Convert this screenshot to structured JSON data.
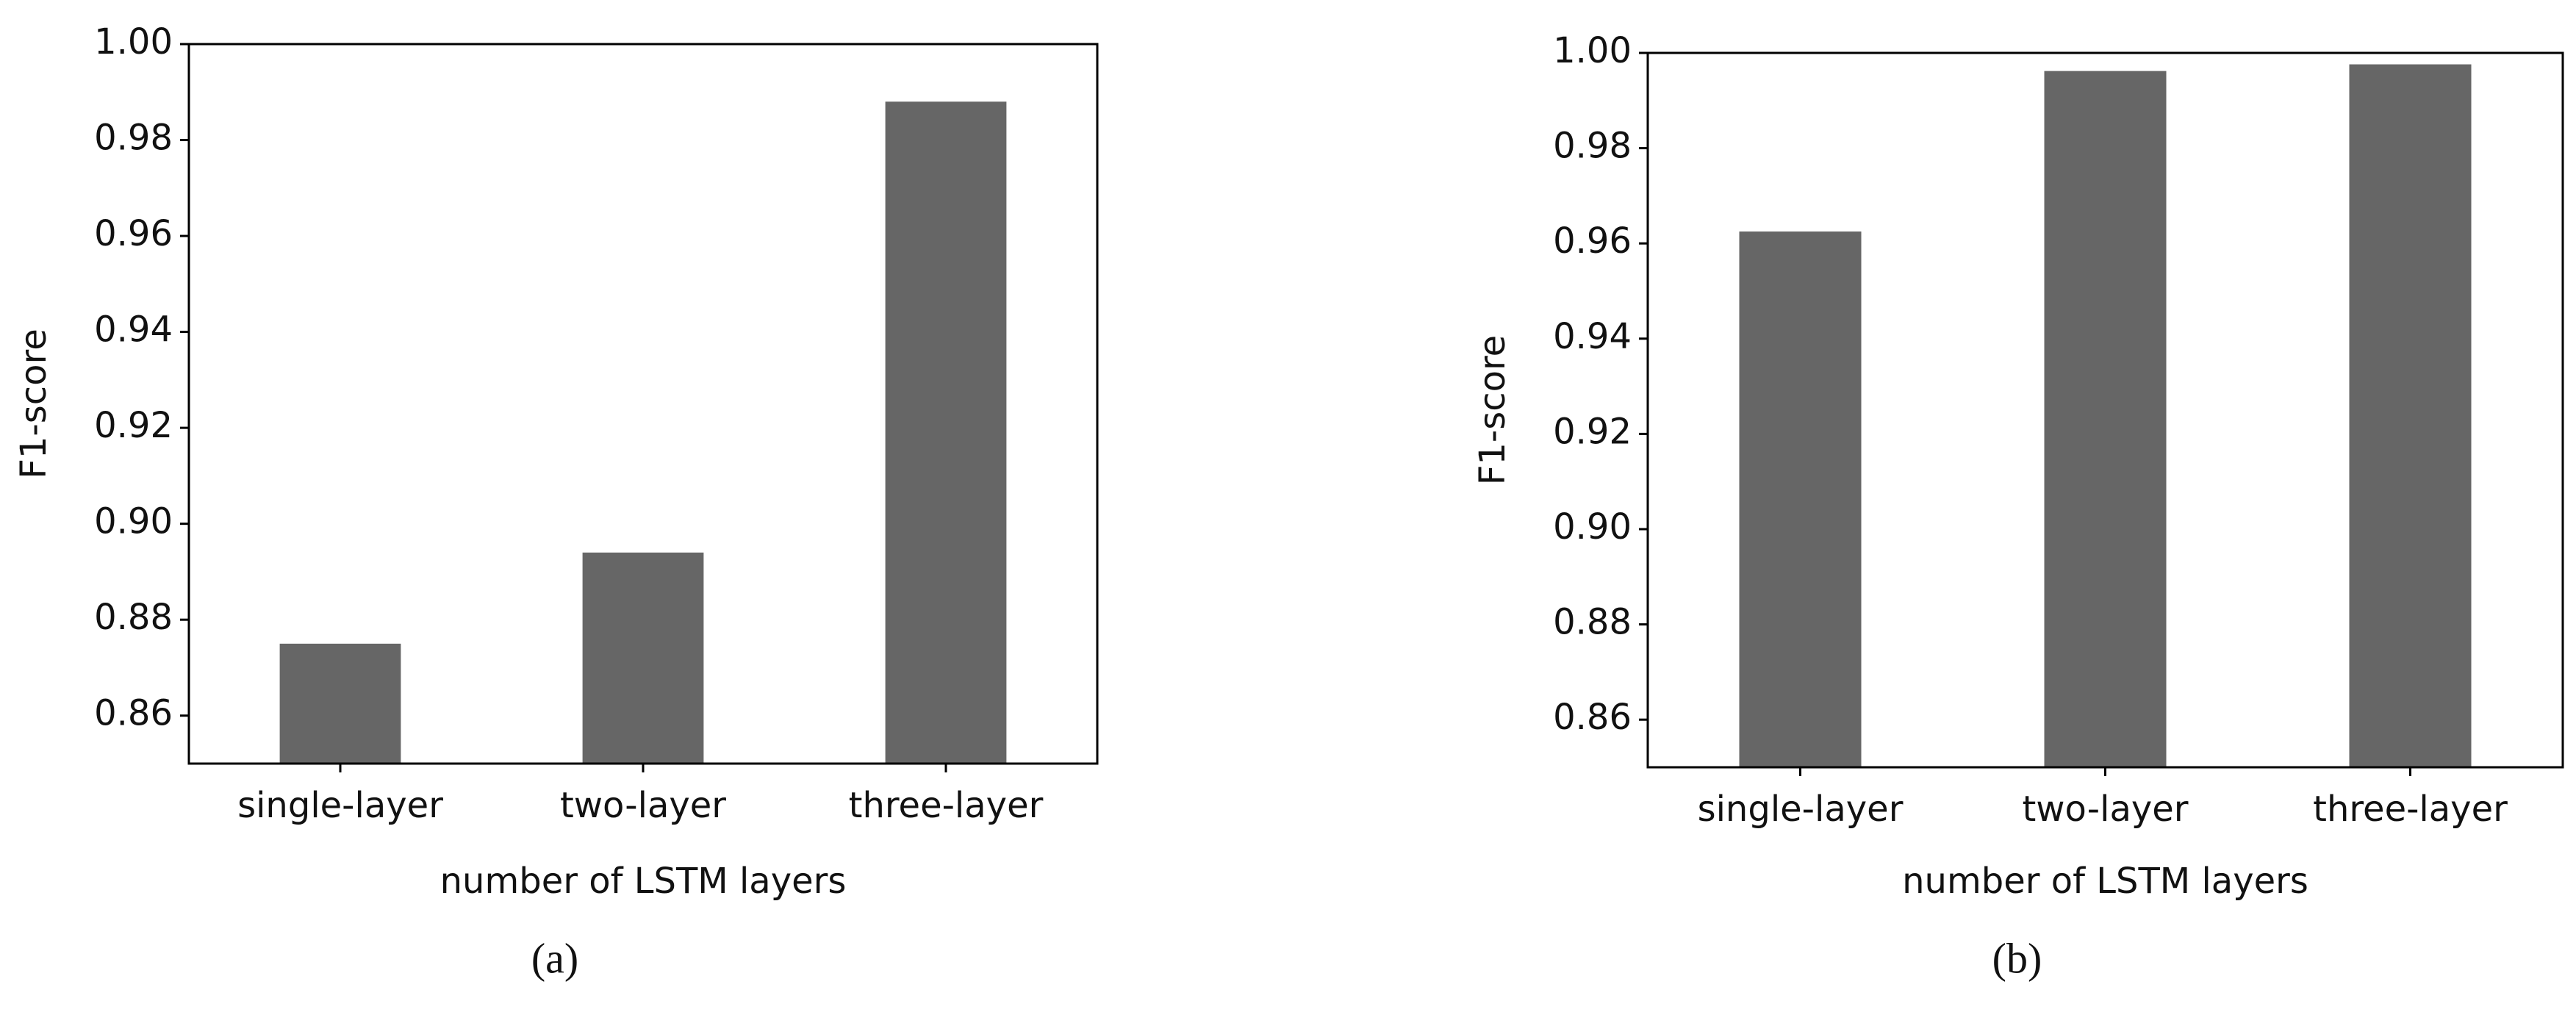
{
  "chart_data": [
    {
      "type": "bar",
      "caption": "(a)",
      "xlabel": "number of LSTM layers",
      "ylabel": "F1-score",
      "categories": [
        "single-layer",
        "two-layer",
        "three-layer"
      ],
      "values": [
        0.875,
        0.894,
        0.988
      ],
      "color": "#666666",
      "ylim": [
        0.85,
        1
      ],
      "yticks": [
        0.86,
        0.88,
        {
          "value": 0.9,
          "label": "0.90"
        },
        0.92,
        0.94,
        0.96,
        0.98,
        {
          "value": 1,
          "label": "1.00"
        }
      ],
      "grid": false
    },
    {
      "type": "bar",
      "caption": "(b)",
      "xlabel": "number of LSTM layers",
      "ylabel": "F1-score",
      "categories": [
        "single-layer",
        "two-layer",
        "three-layer"
      ],
      "values": [
        0.9625,
        0.9962,
        0.9976
      ],
      "color": "#666666",
      "ylim": [
        0.85,
        1
      ],
      "yticks": [
        0.86,
        0.88,
        {
          "value": 0.9,
          "label": "0.90"
        },
        0.92,
        0.94,
        0.96,
        0.98,
        {
          "value": 1,
          "label": "1.00"
        }
      ],
      "grid": false
    }
  ]
}
